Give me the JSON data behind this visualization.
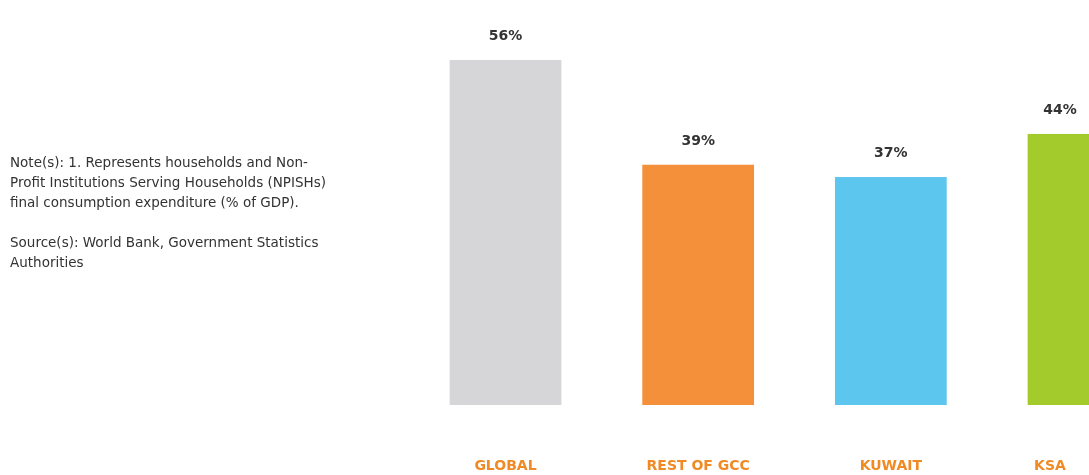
{
  "chart_data": {
    "type": "bar",
    "categories": [
      "GLOBAL",
      "REST OF GCC",
      "KUWAIT",
      "KSA"
    ],
    "values": [
      56,
      39,
      37,
      44
    ],
    "colors": [
      "#d6d5d8",
      "#f5903a",
      "#5cc6ee",
      "#a4cb2c"
    ],
    "data_labels": true,
    "value_labels": [
      "56%",
      "39%",
      "37%",
      "44%"
    ],
    "annotations": [
      "Note(s): 1. Represents households and Non-Profit Institutions Serving Households (NPISHs) final consumption expenditure (% of GDP).",
      "Source(s): World Bank, Government Statistics Authorities"
    ]
  }
}
